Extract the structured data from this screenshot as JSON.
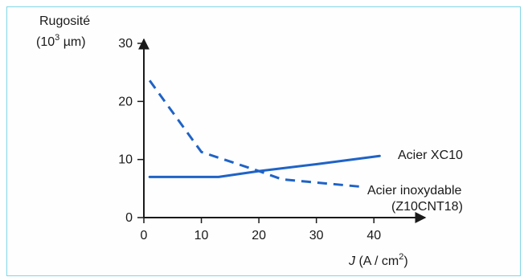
{
  "chart_data": {
    "type": "line",
    "ylabel_line1": "Rugosité",
    "ylabel_line2_prefix": "(10",
    "ylabel_line2_sup": "3",
    "ylabel_line2_suffix": " µm)",
    "xlabel_var": "J",
    "xlabel_prefix": " (A / cm",
    "xlabel_sup": "2",
    "xlabel_suffix": ")",
    "xlim": [
      0,
      45
    ],
    "ylim": [
      0,
      30
    ],
    "xticks": [
      0,
      10,
      20,
      30,
      40
    ],
    "yticks": [
      0,
      10,
      20,
      30
    ],
    "grid": false,
    "series": [
      {
        "name": "Acier XC10",
        "style": "solid",
        "color": "#1f63c6",
        "x": [
          1,
          13,
          20,
          30,
          41
        ],
        "y": [
          7.0,
          7.0,
          8.0,
          9.2,
          10.6
        ]
      },
      {
        "name": "Acier inoxydable",
        "name_line2": "(Z10CNT18)",
        "style": "dashed",
        "color": "#1f63c6",
        "x": [
          1,
          10,
          20,
          24,
          38
        ],
        "y": [
          23.6,
          11.3,
          8.0,
          6.6,
          5.3
        ]
      }
    ]
  }
}
